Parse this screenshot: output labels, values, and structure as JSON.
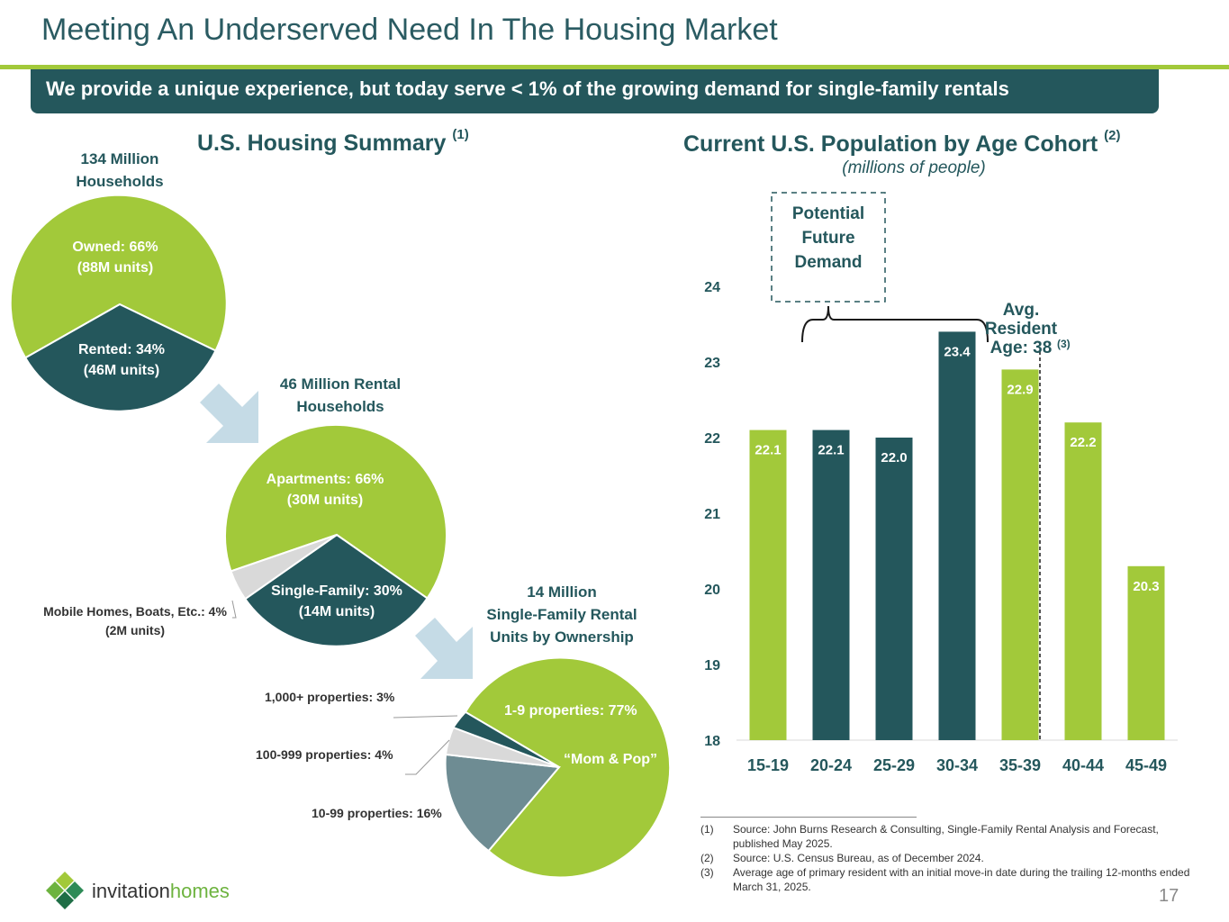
{
  "title": "Meeting An Underserved Need In The Housing Market",
  "subtitle": "We provide a unique experience, but today serve < 1% of the growing demand for single-family rentals",
  "left_section": {
    "title": "U.S. Housing Summary",
    "ref": "(1)"
  },
  "right_section": {
    "title": "Current U.S. Population by Age Cohort",
    "ref": "(2)",
    "subtitle": "(millions of people)"
  },
  "colors": {
    "green": "#a2c93a",
    "teal": "#24575c",
    "gray": "#d9d9d9",
    "slate": "#6e8c93",
    "arrow": "#c5dbe6"
  },
  "pie1": {
    "heading": [
      "134 Million",
      "Households"
    ],
    "owned": [
      "Owned: 66%",
      "(88M units)"
    ],
    "rented": [
      "Rented: 34%",
      "(46M units)"
    ]
  },
  "pie2": {
    "heading": [
      "46 Million Rental",
      "Households"
    ],
    "apartments": [
      "Apartments: 66%",
      "(30M units)"
    ],
    "single_family": [
      "Single-Family: 30%",
      "(14M units)"
    ],
    "mobile": [
      "Mobile Homes, Boats, Etc.: 4%",
      "(2M units)"
    ]
  },
  "pie3": {
    "heading": [
      "14 Million",
      "Single-Family Rental",
      "Units by Ownership"
    ],
    "p1_9": "1-9 properties: 77%",
    "mom_pop": "“Mom & Pop”",
    "p1000": "1,000+ properties: 3%",
    "p100": "100-999 properties: 4%",
    "p10": "10-99 properties: 16%"
  },
  "chart_data": [
    {
      "type": "pie",
      "title": "134 Million Households",
      "labels": [
        "Owned",
        "Rented"
      ],
      "values": [
        66,
        34
      ],
      "units": [
        "88M units",
        "46M units"
      ]
    },
    {
      "type": "pie",
      "title": "46 Million Rental Households",
      "labels": [
        "Apartments",
        "Single-Family",
        "Mobile Homes, Boats, Etc."
      ],
      "values": [
        66,
        30,
        4
      ],
      "units": [
        "30M units",
        "14M units",
        "2M units"
      ]
    },
    {
      "type": "pie",
      "title": "14 Million Single-Family Rental Units by Ownership",
      "labels": [
        "1-9 properties",
        "10-99 properties",
        "100-999 properties",
        "1,000+ properties"
      ],
      "values": [
        77,
        16,
        4,
        3
      ]
    },
    {
      "type": "bar",
      "title": "Current U.S. Population by Age Cohort",
      "subtitle": "(millions of people)",
      "categories": [
        "15-19",
        "20-24",
        "25-29",
        "30-34",
        "35-39",
        "40-44",
        "45-49"
      ],
      "values": [
        22.1,
        22.1,
        22.0,
        23.4,
        22.9,
        22.2,
        20.3
      ],
      "value_labels": [
        "22.1",
        "22.1",
        "22.0",
        "23.4",
        "22.9",
        "22.2",
        "20.3"
      ],
      "bar_colors": [
        "#a2c93a",
        "#24575c",
        "#24575c",
        "#24575c",
        "#a2c93a",
        "#a2c93a",
        "#a2c93a"
      ],
      "ylim": [
        18,
        24
      ],
      "yticks": [
        18,
        19,
        20,
        21,
        22,
        23,
        24
      ],
      "grid": false,
      "annotations": {
        "potential": [
          "Potential",
          "Future",
          "Demand"
        ],
        "avg_age": [
          "Avg.",
          "Resident",
          "Age: 38"
        ],
        "avg_age_ref": "(3)"
      }
    }
  ],
  "footnotes": [
    {
      "n": "(1)",
      "text": "Source: John Burns Research & Consulting, Single-Family Rental Analysis and Forecast, published May 2025."
    },
    {
      "n": "(2)",
      "text": "Source: U.S. Census Bureau, as of December 2024."
    },
    {
      "n": "(3)",
      "text": "Average age of primary resident with an initial move-in date during the trailing 12-months ended March 31, 2025."
    }
  ],
  "page_number": "17",
  "logo": {
    "word1": "invitation",
    "word2": "homes",
    "icon": "diamond-cluster-icon"
  }
}
